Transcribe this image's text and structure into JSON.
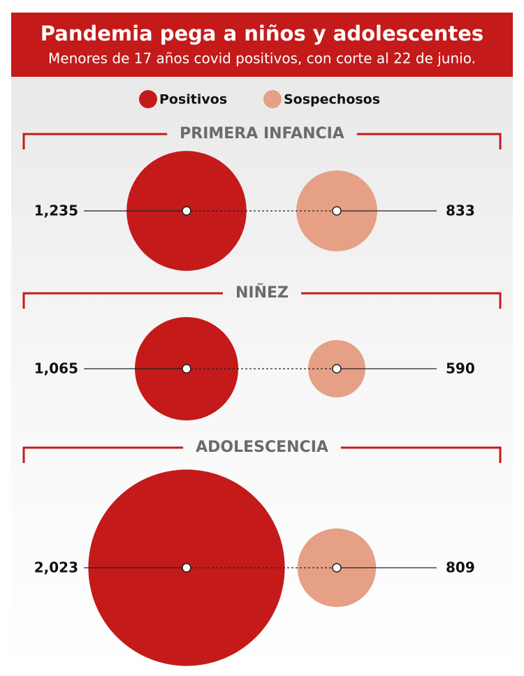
{
  "chart_data": {
    "type": "bubble",
    "title": "Pandemia pega a niños y adolescentes",
    "subtitle": "Menores de 17 años covid positivos, con corte al 22 de junio.",
    "categories": [
      "PRIMERA INFANCIA",
      "NIÑEZ",
      "ADOLESCENCIA"
    ],
    "series": [
      {
        "name": "Positivos",
        "color": "#c41a1a",
        "values": [
          1235,
          1065,
          2023
        ],
        "value_labels": [
          "1,235",
          "1,065",
          "2,023"
        ]
      },
      {
        "name": "Sospechosos",
        "color": "#e5a086",
        "values": [
          833,
          590,
          809
        ]
      }
    ]
  }
}
